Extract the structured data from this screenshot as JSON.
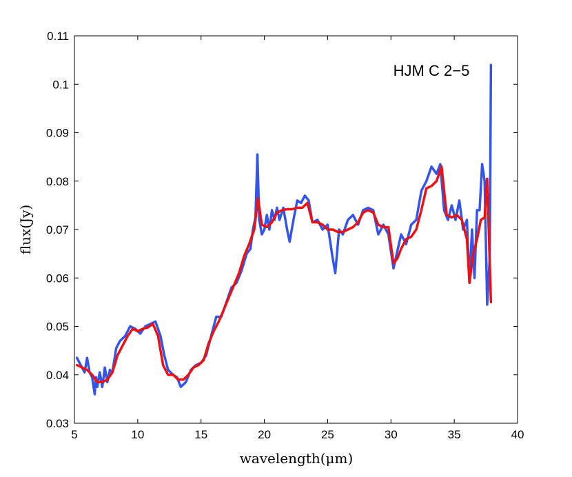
{
  "chart_data": {
    "type": "line",
    "annotation": "HJM C 2−5",
    "xlabel": "wavelength(μm)",
    "ylabel": "flux(Jy)",
    "xlim": [
      5,
      40
    ],
    "ylim": [
      0.03,
      0.11
    ],
    "x_ticks": [
      5,
      10,
      15,
      20,
      25,
      30,
      35,
      40
    ],
    "y_ticks": [
      0.03,
      0.04,
      0.05,
      0.06,
      0.07,
      0.08,
      0.09,
      0.1,
      0.11
    ],
    "x_tick_labels": [
      "5",
      "10",
      "15",
      "20",
      "25",
      "30",
      "35",
      "40"
    ],
    "y_tick_labels": [
      "0.03",
      "0.04",
      "0.05",
      "0.06",
      "0.07",
      "0.08",
      "0.09",
      "0.1",
      "0.11"
    ],
    "grid": false,
    "series": [
      {
        "color": "#3355ee",
        "x": [
          5.2,
          5.4,
          5.6,
          5.8,
          6.0,
          6.2,
          6.4,
          6.6,
          6.7,
          6.8,
          7.0,
          7.2,
          7.4,
          7.6,
          7.8,
          8.0,
          8.3,
          8.6,
          9.0,
          9.4,
          9.8,
          10.2,
          10.6,
          11.0,
          11.4,
          11.8,
          12.1,
          12.4,
          12.8,
          13.1,
          13.4,
          13.8,
          14.2,
          14.6,
          15.0,
          15.4,
          15.8,
          16.2,
          16.6,
          17.0,
          17.4,
          17.8,
          18.2,
          18.6,
          18.9,
          19.1,
          19.3,
          19.45,
          19.6,
          19.8,
          20.0,
          20.2,
          20.4,
          20.6,
          20.8,
          21.0,
          21.2,
          21.5,
          21.8,
          22.0,
          22.3,
          22.6,
          22.9,
          23.2,
          23.5,
          23.8,
          24.2,
          24.6,
          25.0,
          25.4,
          25.6,
          25.9,
          26.2,
          26.6,
          27.0,
          27.4,
          27.8,
          28.2,
          28.6,
          29.0,
          29.4,
          29.8,
          30.2,
          30.5,
          30.8,
          31.2,
          31.6,
          32.0,
          32.4,
          32.8,
          33.2,
          33.6,
          33.9,
          34.2,
          34.5,
          34.8,
          35.1,
          35.4,
          35.7,
          36.0,
          36.2,
          36.4,
          36.6,
          36.8,
          37.0,
          37.2,
          37.4,
          37.6,
          37.8,
          37.9
        ],
        "y": [
          0.0435,
          0.0425,
          0.0415,
          0.0405,
          0.0435,
          0.0405,
          0.0395,
          0.036,
          0.0395,
          0.0375,
          0.0405,
          0.0375,
          0.0415,
          0.0385,
          0.041,
          0.0405,
          0.0455,
          0.047,
          0.048,
          0.05,
          0.0495,
          0.0485,
          0.05,
          0.0505,
          0.051,
          0.048,
          0.044,
          0.041,
          0.04,
          0.0395,
          0.0375,
          0.0385,
          0.041,
          0.042,
          0.0425,
          0.044,
          0.048,
          0.052,
          0.052,
          0.055,
          0.058,
          0.059,
          0.0615,
          0.065,
          0.066,
          0.07,
          0.0725,
          0.0855,
          0.072,
          0.069,
          0.07,
          0.073,
          0.07,
          0.074,
          0.072,
          0.0745,
          0.072,
          0.0745,
          0.07,
          0.0675,
          0.072,
          0.076,
          0.0755,
          0.077,
          0.076,
          0.0715,
          0.072,
          0.07,
          0.071,
          0.064,
          0.061,
          0.07,
          0.069,
          0.072,
          0.073,
          0.071,
          0.074,
          0.0745,
          0.074,
          0.069,
          0.071,
          0.069,
          0.062,
          0.0655,
          0.069,
          0.067,
          0.071,
          0.072,
          0.078,
          0.08,
          0.083,
          0.0815,
          0.0835,
          0.074,
          0.072,
          0.075,
          0.072,
          0.076,
          0.07,
          0.072,
          0.059,
          0.07,
          0.06,
          0.074,
          0.074,
          0.0835,
          0.08,
          0.0545,
          0.064,
          0.104
        ]
      },
      {
        "color": "#ee1111",
        "x": [
          5.2,
          5.6,
          6.0,
          6.4,
          6.8,
          7.2,
          7.6,
          8.0,
          8.4,
          8.8,
          9.2,
          9.6,
          10.0,
          10.4,
          10.8,
          11.2,
          11.6,
          12.0,
          12.4,
          12.8,
          13.2,
          13.6,
          14.0,
          14.4,
          14.8,
          15.2,
          15.6,
          16.0,
          16.4,
          16.8,
          17.2,
          17.6,
          18.0,
          18.4,
          18.8,
          19.2,
          19.5,
          19.8,
          20.2,
          20.6,
          21.0,
          21.4,
          21.8,
          22.2,
          22.6,
          23.0,
          23.4,
          23.8,
          24.2,
          24.6,
          25.0,
          25.4,
          25.8,
          26.2,
          26.6,
          27.0,
          27.4,
          27.8,
          28.2,
          28.6,
          29.0,
          29.4,
          29.8,
          30.2,
          30.5,
          30.8,
          31.2,
          31.6,
          32.0,
          32.4,
          32.8,
          33.2,
          33.6,
          34.0,
          34.4,
          34.8,
          35.2,
          35.6,
          36.0,
          36.2,
          36.5,
          36.8,
          37.1,
          37.4,
          37.6,
          37.9
        ],
        "y": [
          0.042,
          0.0415,
          0.041,
          0.04,
          0.0385,
          0.0385,
          0.039,
          0.0405,
          0.044,
          0.046,
          0.048,
          0.0495,
          0.049,
          0.0495,
          0.0498,
          0.0505,
          0.048,
          0.042,
          0.04,
          0.04,
          0.039,
          0.039,
          0.04,
          0.0415,
          0.042,
          0.043,
          0.0465,
          0.049,
          0.051,
          0.0535,
          0.056,
          0.0585,
          0.061,
          0.0645,
          0.067,
          0.07,
          0.0765,
          0.071,
          0.0705,
          0.0715,
          0.0735,
          0.074,
          0.0742,
          0.0742,
          0.0745,
          0.0745,
          0.0755,
          0.0715,
          0.0715,
          0.071,
          0.07,
          0.07,
          0.0695,
          0.0695,
          0.07,
          0.0705,
          0.0715,
          0.0735,
          0.074,
          0.0735,
          0.071,
          0.0705,
          0.0705,
          0.063,
          0.064,
          0.066,
          0.068,
          0.0685,
          0.07,
          0.074,
          0.0785,
          0.079,
          0.08,
          0.083,
          0.073,
          0.0725,
          0.073,
          0.072,
          0.068,
          0.059,
          0.065,
          0.068,
          0.072,
          0.0725,
          0.0805,
          0.055
        ]
      }
    ]
  }
}
